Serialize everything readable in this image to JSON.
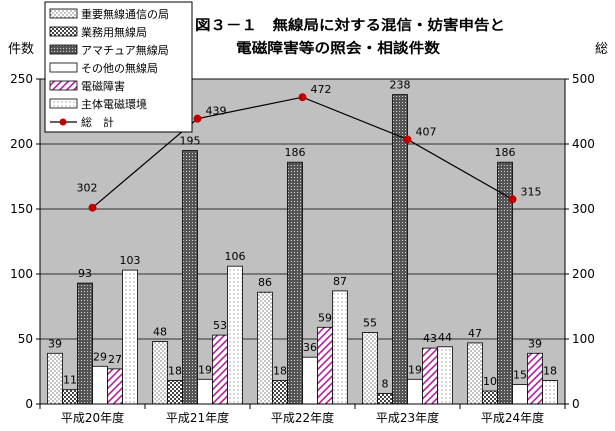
{
  "chart_data": {
    "type": "bar",
    "title": [
      "図３－１　無線局に対する混信・妨害申告と",
      "電磁障害等の照会・相談件数"
    ],
    "ylabel_left": "件数",
    "ylabel_right": "総",
    "categories": [
      "平成20年度",
      "平成21年度",
      "平成22年度",
      "平成23年度",
      "平成24年度"
    ],
    "ylim_left": [
      0,
      250
    ],
    "yticks_left": [
      0,
      50,
      100,
      150,
      200,
      250
    ],
    "ylim_right": [
      0,
      500
    ],
    "yticks_right": [
      0,
      100,
      200,
      300,
      400,
      500
    ],
    "grid": true,
    "legend_position": "top-left",
    "series": [
      {
        "name": "重要無線通信の局",
        "values": [
          39,
          48,
          86,
          55,
          47
        ],
        "pattern": "dots"
      },
      {
        "name": "業務用無線局",
        "values": [
          11,
          18,
          18,
          8,
          10
        ],
        "pattern": "check"
      },
      {
        "name": "アマチュア無線局",
        "values": [
          93,
          195,
          186,
          238,
          186
        ],
        "pattern": "dark"
      },
      {
        "name": "その他の無線局",
        "values": [
          29,
          19,
          36,
          19,
          15
        ],
        "pattern": "white"
      },
      {
        "name": "電磁障害",
        "values": [
          27,
          53,
          59,
          43,
          39
        ],
        "pattern": "pink"
      },
      {
        "name": "主体電磁環境",
        "values": [
          103,
          106,
          87,
          44,
          18
        ],
        "pattern": "lightdots"
      }
    ],
    "line": {
      "name": "総　計",
      "axis": "right",
      "values": [
        302,
        439,
        472,
        407,
        315
      ],
      "color": "#c00000"
    }
  }
}
